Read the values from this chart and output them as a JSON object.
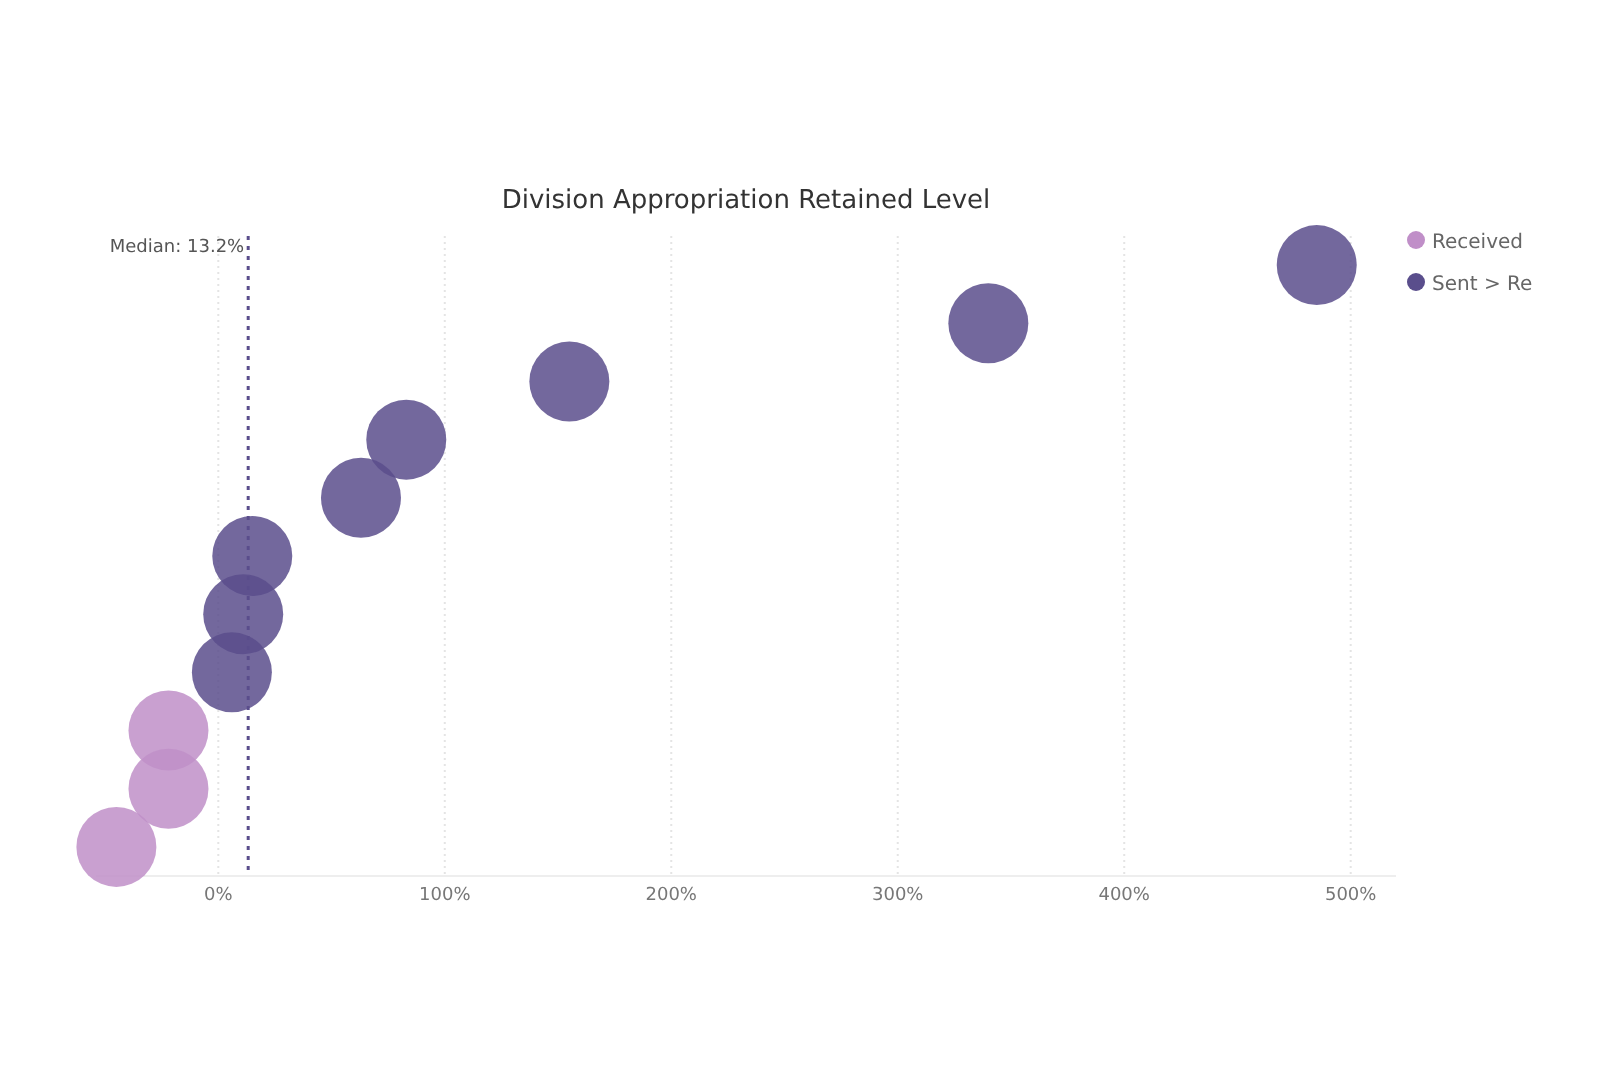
{
  "chart_data": {
    "type": "scatter",
    "title": "Division Appropriation Retained Level",
    "orientation": "horizontal",
    "categories": [
      null,
      null,
      null,
      null,
      null,
      null,
      null,
      null,
      null,
      null,
      null
    ],
    "xlim": [
      -54,
      520
    ],
    "xticks": [
      {
        "value": 0,
        "label": "0%"
      },
      {
        "value": 100,
        "label": "100%"
      },
      {
        "value": 200,
        "label": "200%"
      },
      {
        "value": 300,
        "label": "300%"
      },
      {
        "value": 400,
        "label": "400%"
      },
      {
        "value": 500,
        "label": "500%"
      }
    ],
    "grid": "x",
    "legend": "top right",
    "marker": "circle",
    "series": [
      {
        "name": "Received",
        "color": "#c08fc8",
        "values": [
          null,
          null,
          null,
          null,
          null,
          null,
          null,
          null,
          -22,
          -22,
          -45
        ]
      },
      {
        "name": "Sent > Re",
        "color": "#5a4e8c",
        "values": [
          485,
          340,
          155,
          83,
          63,
          15,
          11,
          6,
          null,
          null,
          null
        ]
      }
    ],
    "ref_lines": [
      {
        "axis": "x",
        "value": 13.2,
        "label": "Median: 13.2%",
        "color": "#5a4e8c",
        "line_style": "dotted"
      }
    ]
  }
}
